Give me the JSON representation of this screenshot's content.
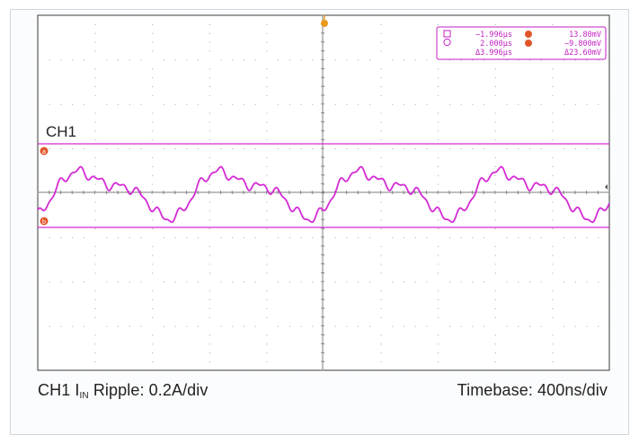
{
  "scope": {
    "channel_label": "CH1",
    "trigger_marker": "T",
    "cursor_a_badge": "a",
    "cursor_b_badge": "b",
    "readout": {
      "time_a": "−1.996μs",
      "time_b": "2.000μs",
      "delta_t": "Δ3.996μs",
      "volt_a": "13.80mV",
      "volt_b": "−9.800mV",
      "delta_v": "Δ23.60mV"
    }
  },
  "caption": {
    "left_prefix": "CH1 I",
    "left_sub": "IN",
    "left_rest": " Ripple: 0.2A/div",
    "right": "Timebase: 400ns/div"
  },
  "colors": {
    "trace": "#d42bd4",
    "grid_dots": "#9aa3aa",
    "border": "#5a5a5a",
    "trigger": "#e89a1c",
    "cursor_badge": "#e2552b"
  }
}
